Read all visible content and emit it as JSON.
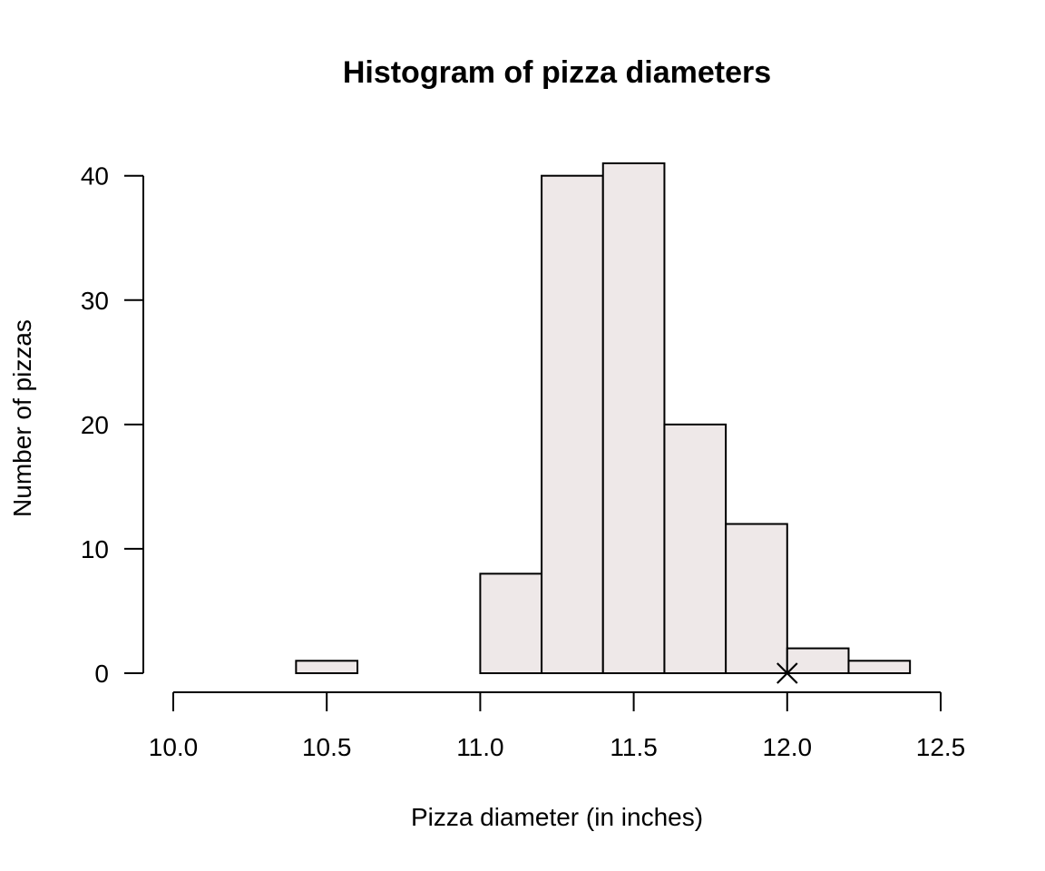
{
  "chart_data": {
    "type": "bar",
    "subtype": "histogram",
    "title": "Histogram of pizza diameters",
    "xlabel": "Pizza diameter (in inches)",
    "ylabel": "Number of pizzas",
    "bins": [
      {
        "start": 10.4,
        "end": 10.6,
        "count": 1
      },
      {
        "start": 10.6,
        "end": 10.8,
        "count": 0
      },
      {
        "start": 10.8,
        "end": 11.0,
        "count": 0
      },
      {
        "start": 11.0,
        "end": 11.2,
        "count": 8
      },
      {
        "start": 11.2,
        "end": 11.4,
        "count": 40
      },
      {
        "start": 11.4,
        "end": 11.6,
        "count": 41
      },
      {
        "start": 11.6,
        "end": 11.8,
        "count": 20
      },
      {
        "start": 11.8,
        "end": 12.0,
        "count": 12
      },
      {
        "start": 12.0,
        "end": 12.2,
        "count": 2
      },
      {
        "start": 12.2,
        "end": 12.4,
        "count": 1
      }
    ],
    "xlim": [
      10.0,
      12.5
    ],
    "ylim": [
      0,
      41
    ],
    "x_ticks": [
      10.0,
      10.5,
      11.0,
      11.5,
      12.0,
      12.5
    ],
    "x_tick_labels": [
      "10.0",
      "10.5",
      "11.0",
      "11.5",
      "12.0",
      "12.5"
    ],
    "y_ticks": [
      0,
      10,
      20,
      30,
      40
    ],
    "y_tick_labels": [
      "0",
      "10",
      "20",
      "30",
      "40"
    ],
    "bar_fill": "#EEE8E8",
    "bar_stroke": "#000000",
    "grid": false,
    "annotations": [
      {
        "type": "marker",
        "shape": "x",
        "x": 12.0,
        "y": 0
      }
    ]
  }
}
